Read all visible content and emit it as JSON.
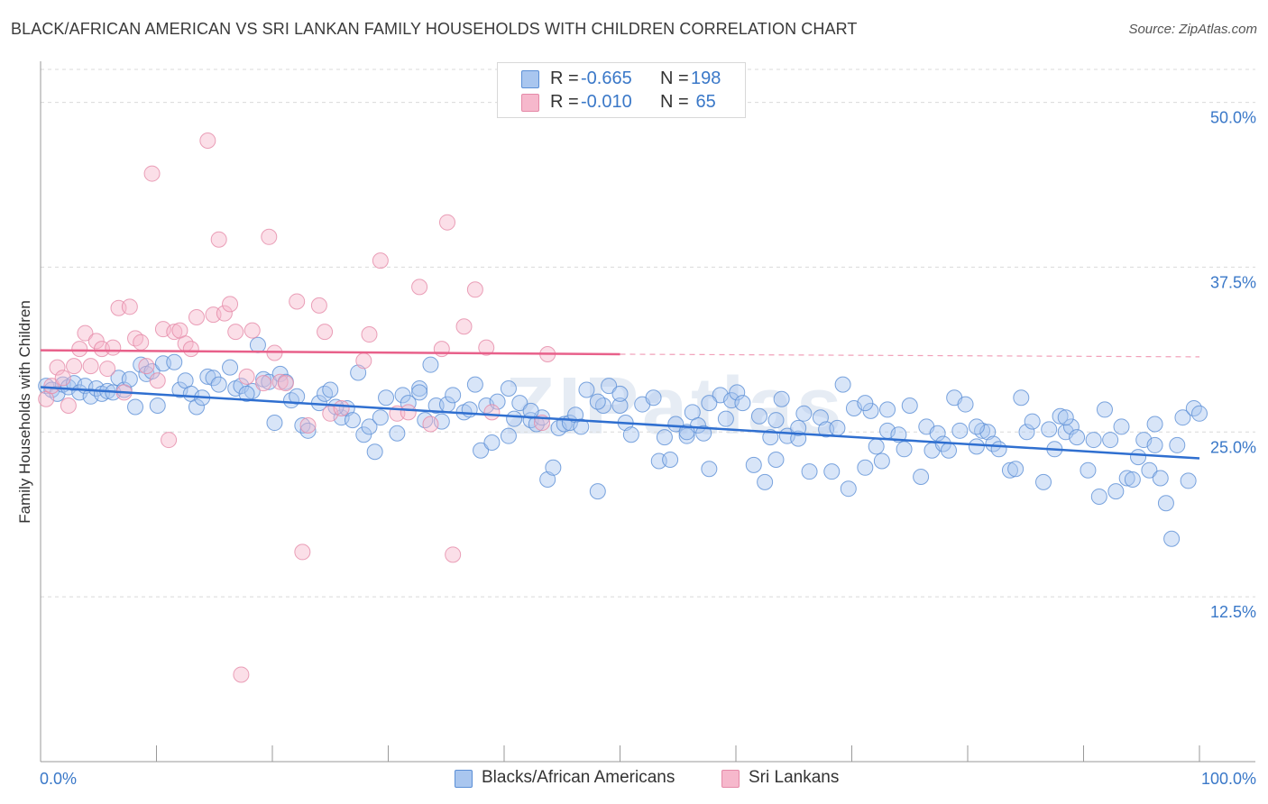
{
  "title": "BLACK/AFRICAN AMERICAN VS SRI LANKAN FAMILY HOUSEHOLDS WITH CHILDREN CORRELATION CHART",
  "source": "Source: ZipAtlas.com",
  "watermark": "ZIPatlas",
  "legend": {
    "rows": [
      {
        "r_label": "R =",
        "r_value": "-0.665",
        "n_label": "N =",
        "n_value": "198",
        "color": "#a9c6ef"
      },
      {
        "r_label": "R =",
        "r_value": "-0.010",
        "n_label": "N =",
        "n_value": " 65",
        "color": "#f6b8cc"
      }
    ]
  },
  "bottom_legend": [
    {
      "label": "Blacks/African Americans",
      "color": "#a9c6ef"
    },
    {
      "label": "Sri Lankans",
      "color": "#f6b8cc"
    }
  ],
  "colors": {
    "blue_fill": "#a9c6ef",
    "blue_stroke": "#5b8fd6",
    "blue_line": "#2f6fd0",
    "pink_fill": "#f6b8cc",
    "pink_stroke": "#e58aa8",
    "pink_line": "#e8608a",
    "tick_text": "#3a78c8",
    "grid": "#d9d9d9"
  },
  "chart_data": {
    "type": "scatter",
    "title": "BLACK/AFRICAN AMERICAN VS SRI LANKAN FAMILY HOUSEHOLDS WITH CHILDREN CORRELATION CHART",
    "xlabel": "",
    "ylabel": "Family Households with Children",
    "xlim": [
      0,
      100
    ],
    "ylim": [
      0,
      52.5
    ],
    "x_tick_labels": [
      "0.0%",
      "100.0%"
    ],
    "y_ticks": [
      12.5,
      25.0,
      37.5,
      50.0
    ],
    "y_tick_labels": [
      "12.5%",
      "25.0%",
      "37.5%",
      "50.0%"
    ],
    "grid": "horizontal dashed",
    "legend_position": "top-center",
    "series": [
      {
        "name": "Blacks/African Americans",
        "r": -0.665,
        "n": 198,
        "trend": {
          "x": [
            0,
            100
          ],
          "y": [
            28.4,
            23.0
          ]
        },
        "points": [
          [
            0.5,
            28.5
          ],
          [
            1,
            28.2
          ],
          [
            1.5,
            27.9
          ],
          [
            2,
            28.6
          ],
          [
            2.5,
            28.4
          ],
          [
            3,
            28.7
          ],
          [
            3.5,
            28.0
          ],
          [
            4,
            28.5
          ],
          [
            4.5,
            27.7
          ],
          [
            5,
            28.3
          ],
          [
            5.5,
            27.9
          ],
          [
            6,
            28.1
          ],
          [
            6.5,
            28.0
          ],
          [
            7,
            29.1
          ],
          [
            7.5,
            28.2
          ],
          [
            8,
            29.0
          ],
          [
            8.5,
            26.9
          ],
          [
            9,
            30.1
          ],
          [
            9.5,
            29.4
          ],
          [
            10,
            29.6
          ],
          [
            10.5,
            27.0
          ],
          [
            11,
            30.2
          ],
          [
            12,
            30.3
          ],
          [
            12.5,
            28.2
          ],
          [
            13,
            28.9
          ],
          [
            13.5,
            27.9
          ],
          [
            14,
            26.9
          ],
          [
            14.5,
            27.6
          ],
          [
            15,
            29.2
          ],
          [
            15.5,
            29.1
          ],
          [
            16,
            28.6
          ],
          [
            17,
            29.9
          ],
          [
            17.5,
            28.3
          ],
          [
            18,
            28.5
          ],
          [
            19,
            28.1
          ],
          [
            19.5,
            31.6
          ],
          [
            20,
            29.0
          ],
          [
            20.5,
            28.8
          ],
          [
            21,
            25.7
          ],
          [
            21.5,
            29.4
          ],
          [
            22,
            28.8
          ],
          [
            22.5,
            27.4
          ],
          [
            23,
            27.7
          ],
          [
            23.5,
            25.5
          ],
          [
            24,
            25.1
          ],
          [
            25,
            27.2
          ],
          [
            25.5,
            27.9
          ],
          [
            26,
            28.2
          ],
          [
            27,
            26.1
          ],
          [
            27.5,
            26.8
          ],
          [
            28,
            25.9
          ],
          [
            28.5,
            29.5
          ],
          [
            29,
            24.8
          ],
          [
            29.5,
            25.4
          ],
          [
            30,
            23.5
          ],
          [
            30.5,
            26.1
          ],
          [
            31,
            27.6
          ],
          [
            32,
            24.9
          ],
          [
            32.5,
            27.8
          ],
          [
            33,
            27.2
          ],
          [
            34,
            28.3
          ],
          [
            34.5,
            25.9
          ],
          [
            35,
            30.1
          ],
          [
            35.5,
            27.0
          ],
          [
            36,
            25.8
          ],
          [
            36.5,
            27.1
          ],
          [
            37,
            27.8
          ],
          [
            38,
            26.5
          ],
          [
            38.5,
            26.7
          ],
          [
            39,
            28.6
          ],
          [
            39.5,
            23.6
          ],
          [
            40,
            27.0
          ],
          [
            40.5,
            24.2
          ],
          [
            41,
            27.3
          ],
          [
            42,
            24.7
          ],
          [
            42.5,
            26.0
          ],
          [
            43,
            27.2
          ],
          [
            44,
            25.9
          ],
          [
            44.5,
            25.6
          ],
          [
            45,
            26.1
          ],
          [
            45.5,
            21.4
          ],
          [
            46,
            22.3
          ],
          [
            46.5,
            25.3
          ],
          [
            47,
            25.6
          ],
          [
            47.5,
            25.7
          ],
          [
            48,
            26.3
          ],
          [
            48.5,
            25.4
          ],
          [
            49,
            28.2
          ],
          [
            50,
            20.5
          ],
          [
            50.5,
            27.0
          ],
          [
            51,
            28.5
          ],
          [
            52,
            27.0
          ],
          [
            52.5,
            25.7
          ],
          [
            53,
            24.8
          ],
          [
            54,
            27.1
          ],
          [
            55,
            27.6
          ],
          [
            55.5,
            22.8
          ],
          [
            56,
            24.6
          ],
          [
            56.5,
            22.9
          ],
          [
            57,
            25.6
          ],
          [
            58,
            24.7
          ],
          [
            58.5,
            26.5
          ],
          [
            59,
            25.5
          ],
          [
            59.5,
            24.9
          ],
          [
            60,
            22.2
          ],
          [
            61,
            27.8
          ],
          [
            61.5,
            26.0
          ],
          [
            62,
            27.4
          ],
          [
            62.5,
            28.0
          ],
          [
            63,
            27.2
          ],
          [
            64,
            22.5
          ],
          [
            64.5,
            26.2
          ],
          [
            65,
            21.2
          ],
          [
            65.5,
            24.6
          ],
          [
            66,
            22.9
          ],
          [
            66.5,
            27.5
          ],
          [
            67,
            24.7
          ],
          [
            68,
            24.5
          ],
          [
            68.5,
            26.4
          ],
          [
            69,
            22.0
          ],
          [
            70,
            26.1
          ],
          [
            70.5,
            25.2
          ],
          [
            71,
            22.0
          ],
          [
            71.5,
            25.3
          ],
          [
            72,
            28.6
          ],
          [
            72.5,
            20.7
          ],
          [
            73,
            26.8
          ],
          [
            74,
            22.3
          ],
          [
            74.5,
            26.6
          ],
          [
            75,
            23.9
          ],
          [
            75.5,
            22.8
          ],
          [
            76,
            25.1
          ],
          [
            77,
            24.8
          ],
          [
            77.5,
            23.7
          ],
          [
            78,
            27.0
          ],
          [
            79,
            21.6
          ],
          [
            79.5,
            25.4
          ],
          [
            80,
            23.6
          ],
          [
            80.5,
            24.9
          ],
          [
            81,
            24.1
          ],
          [
            81.5,
            23.6
          ],
          [
            82,
            27.6
          ],
          [
            82.5,
            25.1
          ],
          [
            83,
            27.1
          ],
          [
            84,
            23.9
          ],
          [
            84.5,
            25.1
          ],
          [
            85,
            25.0
          ],
          [
            85.5,
            24.1
          ],
          [
            86,
            23.7
          ],
          [
            87,
            22.1
          ],
          [
            87.5,
            22.2
          ],
          [
            88,
            27.6
          ],
          [
            88.5,
            25.0
          ],
          [
            89,
            25.8
          ],
          [
            90,
            21.2
          ],
          [
            90.5,
            25.2
          ],
          [
            91,
            23.7
          ],
          [
            91.5,
            26.2
          ],
          [
            92,
            25.0
          ],
          [
            92.5,
            25.4
          ],
          [
            93,
            24.6
          ],
          [
            94,
            22.1
          ],
          [
            94.5,
            24.4
          ],
          [
            95,
            20.1
          ],
          [
            95.5,
            26.7
          ],
          [
            96,
            24.4
          ],
          [
            96.5,
            20.5
          ],
          [
            97,
            25.4
          ],
          [
            97.5,
            21.5
          ],
          [
            98,
            21.4
          ],
          [
            98.5,
            23.1
          ],
          [
            99,
            24.4
          ],
          [
            99.5,
            22.1
          ],
          [
            100,
            24.0
          ],
          [
            100.5,
            21.5
          ],
          [
            101,
            19.6
          ],
          [
            101.5,
            16.9
          ],
          [
            102,
            24.0
          ],
          [
            102.5,
            26.1
          ],
          [
            103,
            21.3
          ],
          [
            103.5,
            26.8
          ],
          [
            104,
            26.4
          ],
          [
            44,
            26.6
          ],
          [
            52,
            27.9
          ],
          [
            60,
            27.2
          ],
          [
            68,
            25.3
          ],
          [
            76,
            26.7
          ],
          [
            84,
            25.4
          ],
          [
            92,
            26.1
          ],
          [
            100,
            25.6
          ],
          [
            18.5,
            27.9
          ],
          [
            26.5,
            26.9
          ],
          [
            34,
            28.0
          ],
          [
            42,
            28.3
          ],
          [
            50,
            27.3
          ],
          [
            58,
            25.0
          ],
          [
            66,
            25.9
          ],
          [
            74,
            27.2
          ]
        ]
      },
      {
        "name": "Sri Lankans",
        "r": -0.01,
        "n": 65,
        "trend": {
          "x": [
            0,
            50
          ],
          "y": [
            31.2,
            30.9
          ],
          "dashed_extension": {
            "x": [
              50,
              100
            ],
            "y": [
              30.9,
              30.7
            ]
          }
        },
        "points": [
          [
            0.5,
            27.5
          ],
          [
            1,
            28.5
          ],
          [
            1.5,
            29.9
          ],
          [
            2,
            29.1
          ],
          [
            2.5,
            27.0
          ],
          [
            3,
            30.0
          ],
          [
            3.5,
            31.3
          ],
          [
            4,
            32.5
          ],
          [
            4.5,
            30.0
          ],
          [
            5,
            31.9
          ],
          [
            5.5,
            31.3
          ],
          [
            6,
            29.8
          ],
          [
            6.5,
            31.4
          ],
          [
            7,
            34.4
          ],
          [
            7.5,
            28.0
          ],
          [
            8,
            34.5
          ],
          [
            8.5,
            32.1
          ],
          [
            9,
            31.8
          ],
          [
            9.5,
            30.0
          ],
          [
            10,
            44.6
          ],
          [
            10.5,
            28.9
          ],
          [
            11,
            32.8
          ],
          [
            11.5,
            24.4
          ],
          [
            12,
            32.6
          ],
          [
            12.5,
            32.7
          ],
          [
            13,
            31.7
          ],
          [
            13.5,
            31.3
          ],
          [
            14,
            33.7
          ],
          [
            15,
            47.1
          ],
          [
            15.5,
            33.9
          ],
          [
            16,
            39.6
          ],
          [
            16.5,
            34.0
          ],
          [
            17,
            34.7
          ],
          [
            17.5,
            32.6
          ],
          [
            18,
            6.6
          ],
          [
            18.5,
            29.2
          ],
          [
            19,
            32.7
          ],
          [
            20,
            28.7
          ],
          [
            20.5,
            39.8
          ],
          [
            21,
            31.0
          ],
          [
            21.5,
            28.8
          ],
          [
            22,
            28.7
          ],
          [
            23,
            34.9
          ],
          [
            23.5,
            15.9
          ],
          [
            24,
            25.5
          ],
          [
            25,
            34.6
          ],
          [
            25.5,
            32.6
          ],
          [
            26,
            26.4
          ],
          [
            27,
            26.8
          ],
          [
            29,
            30.4
          ],
          [
            29.5,
            32.4
          ],
          [
            30.5,
            38.0
          ],
          [
            32,
            26.4
          ],
          [
            33,
            26.5
          ],
          [
            34,
            36.0
          ],
          [
            35,
            25.6
          ],
          [
            36,
            31.3
          ],
          [
            36.5,
            40.9
          ],
          [
            37,
            15.7
          ],
          [
            38,
            33.0
          ],
          [
            39,
            35.8
          ],
          [
            40,
            31.4
          ],
          [
            40.5,
            26.5
          ],
          [
            45,
            25.7
          ],
          [
            45.5,
            30.9
          ]
        ]
      }
    ]
  }
}
